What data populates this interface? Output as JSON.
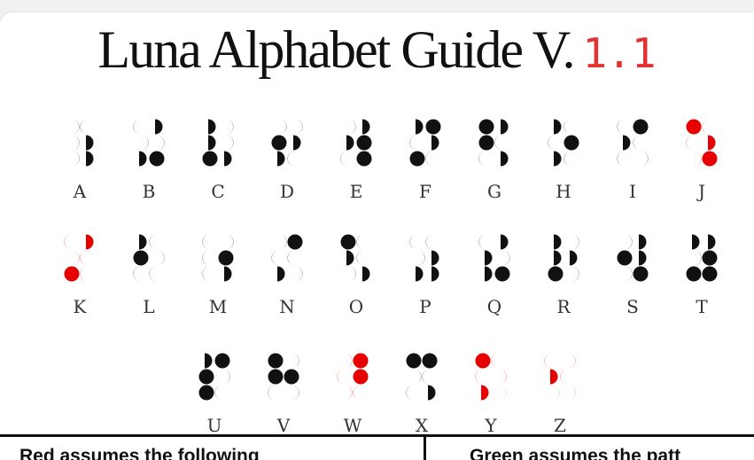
{
  "title": {
    "main": "Luna Alphabet Guide V.",
    "version": "1.1"
  },
  "colors": {
    "black": "#111111",
    "red": "#e60000",
    "green": "#22dd22",
    "version": "#e23232"
  },
  "rows": [
    [
      {
        "letter": "A",
        "cells": [
          [
            "rc",
            "lc"
          ],
          [
            "rc",
            "ld"
          ],
          [
            "rc",
            "ld"
          ]
        ]
      },
      {
        "letter": "B",
        "cells": [
          [
            "lc",
            "ld"
          ],
          [
            "rc",
            "rc"
          ],
          [
            "ld",
            "f"
          ]
        ]
      },
      {
        "letter": "C",
        "cells": [
          [
            "ld",
            "rc"
          ],
          [
            "ld",
            "rc"
          ],
          [
            "f",
            "ld"
          ]
        ]
      },
      {
        "letter": "D",
        "cells": [
          [
            "rc",
            "rc"
          ],
          [
            "f",
            "ld"
          ],
          [
            "ld",
            "lc"
          ]
        ]
      },
      {
        "letter": "E",
        "cells": [
          [
            "rc",
            "ld"
          ],
          [
            "ld",
            "f"
          ],
          [
            "lc",
            "f"
          ]
        ]
      },
      {
        "letter": "F",
        "cells": [
          [
            "ld",
            "f"
          ],
          [
            "lc",
            "ld"
          ],
          [
            "f",
            "lc"
          ]
        ]
      },
      {
        "letter": "G",
        "cells": [
          [
            "f",
            "ld"
          ],
          [
            "f",
            "lc"
          ],
          [
            "lc",
            "ld"
          ]
        ]
      },
      {
        "letter": "H",
        "cells": [
          [
            "ld",
            "lc"
          ],
          [
            "lc",
            "f"
          ],
          [
            "ld",
            "lc"
          ]
        ]
      },
      {
        "letter": "I",
        "cells": [
          [
            "lc",
            "f"
          ],
          [
            "ld",
            "lc"
          ],
          [
            "lc",
            "rc"
          ]
        ]
      },
      {
        "letter": "J",
        "cells": [
          [
            "f:r",
            "lc:r"
          ],
          [
            "lc:r",
            "ld:r"
          ],
          [
            "rc:r",
            "f:r"
          ]
        ]
      }
    ],
    [
      {
        "letter": "K",
        "cells": [
          [
            "lc:r",
            "ld:r"
          ],
          [
            "rc:r",
            "lc:r"
          ],
          [
            "f:r",
            "lc:r"
          ]
        ]
      },
      {
        "letter": "L",
        "cells": [
          [
            "ld",
            "lc"
          ],
          [
            "f",
            "rc"
          ],
          [
            "lc",
            "lc"
          ]
        ]
      },
      {
        "letter": "M",
        "cells": [
          [
            "lc",
            "rc"
          ],
          [
            "lc",
            "f"
          ],
          [
            "lc",
            "ld"
          ]
        ]
      },
      {
        "letter": "N",
        "cells": [
          [
            "rc",
            "f"
          ],
          [
            "lc",
            "lc"
          ],
          [
            "ld",
            "rc"
          ]
        ]
      },
      {
        "letter": "O",
        "cells": [
          [
            "f",
            "lc"
          ],
          [
            "ld",
            "lc"
          ],
          [
            "rc",
            "ld"
          ]
        ]
      },
      {
        "letter": "P",
        "cells": [
          [
            "lc",
            "lc"
          ],
          [
            "rc",
            "ld"
          ],
          [
            "ld",
            "ld"
          ]
        ]
      },
      {
        "letter": "Q",
        "cells": [
          [
            "lc",
            "ld"
          ],
          [
            "ld",
            "rc"
          ],
          [
            "ld",
            "f"
          ]
        ]
      },
      {
        "letter": "R",
        "cells": [
          [
            "ld",
            "rc"
          ],
          [
            "ld",
            "ld"
          ],
          [
            "f",
            "rc"
          ]
        ]
      },
      {
        "letter": "S",
        "cells": [
          [
            "rc",
            "ld"
          ],
          [
            "f",
            "ld"
          ],
          [
            "rc",
            "f"
          ]
        ]
      },
      {
        "letter": "T",
        "cells": [
          [
            "ld",
            "ld"
          ],
          [
            "rc",
            "f"
          ],
          [
            "f",
            "f"
          ]
        ]
      }
    ],
    [
      {
        "letter": "U",
        "cells": [
          [
            "ld",
            "f"
          ],
          [
            "f",
            "rc"
          ],
          [
            "f",
            "lc"
          ]
        ]
      },
      {
        "letter": "V",
        "cells": [
          [
            "f",
            "rc"
          ],
          [
            "f",
            "f"
          ],
          [
            "lc",
            "rc"
          ]
        ]
      },
      {
        "letter": "W",
        "cells": [
          [
            "rc:r",
            "f:r"
          ],
          [
            "lc:r",
            "f:r"
          ],
          [
            "rc:r",
            "lc:r"
          ]
        ]
      },
      {
        "letter": "X",
        "cells": [
          [
            "f",
            "f"
          ],
          [
            "rc",
            "lc"
          ],
          [
            "lc",
            "ld"
          ]
        ]
      },
      {
        "letter": "Y",
        "cells": [
          [
            "f:r",
            "lc:r"
          ],
          [
            "lc:r",
            "rc:r"
          ],
          [
            "ld:r",
            "rc:g"
          ]
        ]
      },
      {
        "letter": "Z",
        "cells": [
          [
            "lc:r",
            "rc:r"
          ],
          [
            "ld:r",
            "lc:r"
          ],
          [
            "rc:g",
            "rc:g"
          ]
        ]
      }
    ]
  ],
  "footer": {
    "left": "Red assumes the following",
    "right": "Green assumes the patt"
  }
}
